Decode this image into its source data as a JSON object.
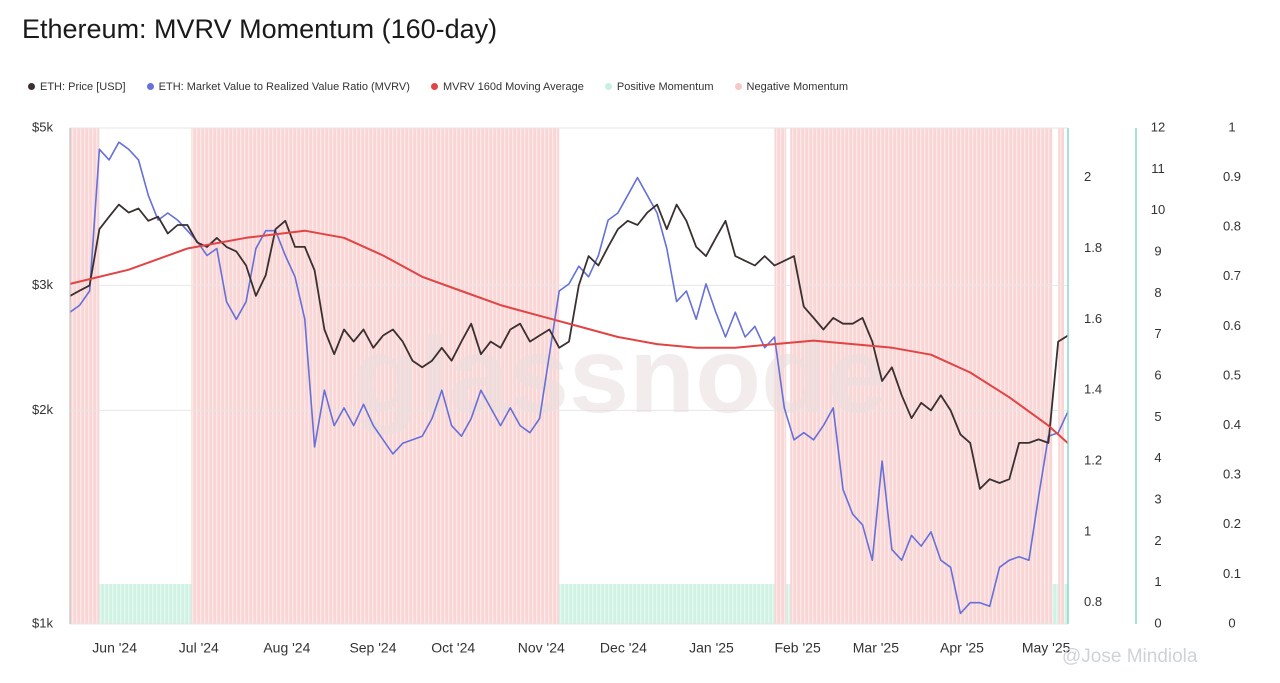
{
  "title": "Ethereum: MVRV Momentum (160-day)",
  "watermark": "@Jose Mindiola",
  "background_logo": "glassnode",
  "chart_data": {
    "type": "line",
    "title": "Ethereum: MVRV Momentum (160-day)",
    "legend": [
      {
        "name": "ETH: Price [USD]",
        "color": "#3a3030"
      },
      {
        "name": "ETH: Market Value to Realized Value Ratio (MVRV)",
        "color": "#6670d8"
      },
      {
        "name": "MVRV 160d Moving Average",
        "color": "#e04444"
      },
      {
        "name": "Positive Momentum",
        "color": "#c8f0de"
      },
      {
        "name": "Negative Momentum",
        "color": "#f7c8c8"
      }
    ],
    "x_range": [
      0,
      51
    ],
    "x_unit": "weeks since 2024-05-10",
    "x_ticks": [
      {
        "label": "Jun '24",
        "x": 3.1
      },
      {
        "label": "Jul '24",
        "x": 7.4
      },
      {
        "label": "Aug '24",
        "x": 11.9
      },
      {
        "label": "Sep '24",
        "x": 16.3
      },
      {
        "label": "Oct '24",
        "x": 20.4
      },
      {
        "label": "Nov '24",
        "x": 24.9
      },
      {
        "label": "Dec '24",
        "x": 29.1
      },
      {
        "label": "Jan '25",
        "x": 33.6
      },
      {
        "label": "Feb '25",
        "x": 38.0
      },
      {
        "label": "Mar '25",
        "x": 42.0
      },
      {
        "label": "Apr '25",
        "x": 46.4
      },
      {
        "label": "May '25",
        "x": 50.7
      }
    ],
    "axes": {
      "price": {
        "label": "",
        "scale": "log",
        "range": [
          1000,
          5000
        ],
        "ticks": [
          {
            "v": 5000,
            "label": "$5k"
          },
          {
            "v": 3000,
            "label": "$3k"
          },
          {
            "v": 2000,
            "label": "$2k"
          },
          {
            "v": 1000,
            "label": "$1k"
          }
        ]
      },
      "mvrv": {
        "range": [
          0.74,
          2.14
        ],
        "ticks": [
          "2",
          "1.8",
          "1.6",
          "1.4",
          "1.2",
          "1",
          "0.8"
        ]
      },
      "axis3": {
        "range": [
          0,
          12
        ],
        "ticks": [
          "12",
          "11",
          "10",
          "9",
          "8",
          "7",
          "6",
          "5",
          "4",
          "3",
          "2",
          "1",
          "0"
        ]
      },
      "axis4": {
        "range": [
          0,
          1
        ],
        "ticks": [
          "1",
          "0.9",
          "0.8",
          "0.7",
          "0.6",
          "0.5",
          "0.4",
          "0.3",
          "0.2",
          "0.1",
          "0"
        ]
      }
    },
    "momentum_bands": [
      {
        "type": "negative",
        "start": 0,
        "end": 1.5
      },
      {
        "type": "positive",
        "start": 1.5,
        "end": 6.2
      },
      {
        "type": "negative",
        "start": 6.2,
        "end": 25.0
      },
      {
        "type": "positive",
        "start": 25.0,
        "end": 36.0
      },
      {
        "type": "negative",
        "start": 36.0,
        "end": 36.6
      },
      {
        "type": "positive",
        "start": 36.6,
        "end": 36.8
      },
      {
        "type": "negative",
        "start": 36.8,
        "end": 50.2
      },
      {
        "type": "positive",
        "start": 50.2,
        "end": 50.5
      },
      {
        "type": "negative",
        "start": 50.5,
        "end": 50.8
      },
      {
        "type": "positive",
        "start": 50.8,
        "end": 51
      }
    ],
    "series": [
      {
        "name": "ETH: Price [USD]",
        "axis": "price",
        "points": [
          [
            0.0,
            2900
          ],
          [
            0.5,
            2950
          ],
          [
            1.0,
            3000
          ],
          [
            1.5,
            3600
          ],
          [
            2.0,
            3750
          ],
          [
            2.5,
            3900
          ],
          [
            3.0,
            3800
          ],
          [
            3.5,
            3850
          ],
          [
            4.0,
            3700
          ],
          [
            4.5,
            3750
          ],
          [
            5.0,
            3550
          ],
          [
            5.5,
            3650
          ],
          [
            6.0,
            3650
          ],
          [
            6.5,
            3450
          ],
          [
            7.0,
            3400
          ],
          [
            7.5,
            3500
          ],
          [
            8.0,
            3400
          ],
          [
            8.5,
            3350
          ],
          [
            9.0,
            3200
          ],
          [
            9.5,
            2900
          ],
          [
            10.0,
            3100
          ],
          [
            10.5,
            3600
          ],
          [
            11.0,
            3700
          ],
          [
            11.5,
            3400
          ],
          [
            12.0,
            3400
          ],
          [
            12.5,
            3150
          ],
          [
            13.0,
            2600
          ],
          [
            13.5,
            2400
          ],
          [
            14.0,
            2600
          ],
          [
            14.5,
            2500
          ],
          [
            15.0,
            2600
          ],
          [
            15.5,
            2450
          ],
          [
            16.0,
            2550
          ],
          [
            16.5,
            2600
          ],
          [
            17.0,
            2500
          ],
          [
            17.5,
            2350
          ],
          [
            18.0,
            2300
          ],
          [
            18.5,
            2350
          ],
          [
            19.0,
            2450
          ],
          [
            19.5,
            2350
          ],
          [
            20.0,
            2500
          ],
          [
            20.5,
            2650
          ],
          [
            21.0,
            2400
          ],
          [
            21.5,
            2500
          ],
          [
            22.0,
            2450
          ],
          [
            22.5,
            2600
          ],
          [
            23.0,
            2650
          ],
          [
            23.5,
            2500
          ],
          [
            24.0,
            2550
          ],
          [
            24.5,
            2600
          ],
          [
            25.0,
            2450
          ],
          [
            25.5,
            2500
          ],
          [
            26.0,
            3000
          ],
          [
            26.5,
            3300
          ],
          [
            27.0,
            3200
          ],
          [
            27.5,
            3400
          ],
          [
            28.0,
            3600
          ],
          [
            28.5,
            3700
          ],
          [
            29.0,
            3650
          ],
          [
            29.5,
            3800
          ],
          [
            30.0,
            3900
          ],
          [
            30.5,
            3600
          ],
          [
            31.0,
            3900
          ],
          [
            31.5,
            3700
          ],
          [
            32.0,
            3400
          ],
          [
            32.5,
            3300
          ],
          [
            33.0,
            3500
          ],
          [
            33.5,
            3700
          ],
          [
            34.0,
            3300
          ],
          [
            34.5,
            3250
          ],
          [
            35.0,
            3200
          ],
          [
            35.5,
            3300
          ],
          [
            36.0,
            3200
          ],
          [
            36.5,
            3250
          ],
          [
            37.0,
            3300
          ],
          [
            37.5,
            2800
          ],
          [
            38.0,
            2700
          ],
          [
            38.5,
            2600
          ],
          [
            39.0,
            2700
          ],
          [
            39.5,
            2650
          ],
          [
            40.0,
            2650
          ],
          [
            40.5,
            2700
          ],
          [
            41.0,
            2500
          ],
          [
            41.5,
            2200
          ],
          [
            42.0,
            2300
          ],
          [
            42.5,
            2100
          ],
          [
            43.0,
            1950
          ],
          [
            43.5,
            2050
          ],
          [
            44.0,
            2000
          ],
          [
            44.5,
            2100
          ],
          [
            45.0,
            2000
          ],
          [
            45.5,
            1850
          ],
          [
            46.0,
            1800
          ],
          [
            46.5,
            1550
          ],
          [
            47.0,
            1600
          ],
          [
            47.5,
            1580
          ],
          [
            48.0,
            1600
          ],
          [
            48.5,
            1800
          ],
          [
            49.0,
            1800
          ],
          [
            49.5,
            1820
          ],
          [
            50.0,
            1800
          ],
          [
            50.5,
            2500
          ],
          [
            51.0,
            2550
          ]
        ]
      },
      {
        "name": "ETH: Market Value to Realized Value Ratio (MVRV)",
        "axis": "mvrv",
        "points": [
          [
            0.0,
            1.62
          ],
          [
            0.5,
            1.64
          ],
          [
            1.0,
            1.68
          ],
          [
            1.5,
            2.08
          ],
          [
            2.0,
            2.05
          ],
          [
            2.5,
            2.1
          ],
          [
            3.0,
            2.08
          ],
          [
            3.5,
            2.05
          ],
          [
            4.0,
            1.95
          ],
          [
            4.5,
            1.88
          ],
          [
            5.0,
            1.9
          ],
          [
            5.5,
            1.88
          ],
          [
            6.0,
            1.85
          ],
          [
            6.5,
            1.82
          ],
          [
            7.0,
            1.78
          ],
          [
            7.5,
            1.8
          ],
          [
            8.0,
            1.65
          ],
          [
            8.5,
            1.6
          ],
          [
            9.0,
            1.65
          ],
          [
            9.5,
            1.8
          ],
          [
            10.0,
            1.85
          ],
          [
            10.5,
            1.85
          ],
          [
            11.0,
            1.78
          ],
          [
            11.5,
            1.72
          ],
          [
            12.0,
            1.6
          ],
          [
            12.5,
            1.24
          ],
          [
            13.0,
            1.4
          ],
          [
            13.5,
            1.3
          ],
          [
            14.0,
            1.35
          ],
          [
            14.5,
            1.3
          ],
          [
            15.0,
            1.36
          ],
          [
            15.5,
            1.3
          ],
          [
            16.0,
            1.26
          ],
          [
            16.5,
            1.22
          ],
          [
            17.0,
            1.25
          ],
          [
            17.5,
            1.26
          ],
          [
            18.0,
            1.27
          ],
          [
            18.5,
            1.32
          ],
          [
            19.0,
            1.4
          ],
          [
            19.5,
            1.3
          ],
          [
            20.0,
            1.27
          ],
          [
            20.5,
            1.32
          ],
          [
            21.0,
            1.4
          ],
          [
            21.5,
            1.35
          ],
          [
            22.0,
            1.3
          ],
          [
            22.5,
            1.35
          ],
          [
            23.0,
            1.3
          ],
          [
            23.5,
            1.28
          ],
          [
            24.0,
            1.32
          ],
          [
            24.5,
            1.5
          ],
          [
            25.0,
            1.68
          ],
          [
            25.5,
            1.7
          ],
          [
            26.0,
            1.75
          ],
          [
            26.5,
            1.72
          ],
          [
            27.0,
            1.78
          ],
          [
            27.5,
            1.88
          ],
          [
            28.0,
            1.9
          ],
          [
            28.5,
            1.95
          ],
          [
            29.0,
            2.0
          ],
          [
            29.5,
            1.95
          ],
          [
            30.0,
            1.9
          ],
          [
            30.5,
            1.8
          ],
          [
            31.0,
            1.65
          ],
          [
            31.5,
            1.68
          ],
          [
            32.0,
            1.6
          ],
          [
            32.5,
            1.7
          ],
          [
            33.0,
            1.62
          ],
          [
            33.5,
            1.55
          ],
          [
            34.0,
            1.62
          ],
          [
            34.5,
            1.55
          ],
          [
            35.0,
            1.58
          ],
          [
            35.5,
            1.52
          ],
          [
            36.0,
            1.55
          ],
          [
            36.5,
            1.35
          ],
          [
            37.0,
            1.26
          ],
          [
            37.5,
            1.28
          ],
          [
            38.0,
            1.26
          ],
          [
            38.5,
            1.3
          ],
          [
            39.0,
            1.35
          ],
          [
            39.5,
            1.12
          ],
          [
            40.0,
            1.05
          ],
          [
            40.5,
            1.02
          ],
          [
            41.0,
            0.92
          ],
          [
            41.5,
            1.2
          ],
          [
            42.0,
            0.95
          ],
          [
            42.5,
            0.92
          ],
          [
            43.0,
            0.99
          ],
          [
            43.5,
            0.96
          ],
          [
            44.0,
            1.0
          ],
          [
            44.5,
            0.92
          ],
          [
            45.0,
            0.9
          ],
          [
            45.5,
            0.77
          ],
          [
            46.0,
            0.8
          ],
          [
            46.5,
            0.8
          ],
          [
            47.0,
            0.79
          ],
          [
            47.5,
            0.9
          ],
          [
            48.0,
            0.92
          ],
          [
            48.5,
            0.93
          ],
          [
            49.0,
            0.92
          ],
          [
            49.5,
            1.1
          ],
          [
            50.0,
            1.27
          ],
          [
            50.5,
            1.28
          ],
          [
            51.0,
            1.34
          ]
        ]
      },
      {
        "name": "MVRV 160d Moving Average",
        "axis": "mvrv",
        "points": [
          [
            0.0,
            1.7
          ],
          [
            3.0,
            1.74
          ],
          [
            6.0,
            1.8
          ],
          [
            9.0,
            1.83
          ],
          [
            12.0,
            1.85
          ],
          [
            14.0,
            1.83
          ],
          [
            16.0,
            1.78
          ],
          [
            18.0,
            1.72
          ],
          [
            20.0,
            1.68
          ],
          [
            22.0,
            1.64
          ],
          [
            24.0,
            1.61
          ],
          [
            26.0,
            1.58
          ],
          [
            28.0,
            1.55
          ],
          [
            30.0,
            1.53
          ],
          [
            32.0,
            1.52
          ],
          [
            34.0,
            1.52
          ],
          [
            36.0,
            1.53
          ],
          [
            38.0,
            1.54
          ],
          [
            40.0,
            1.53
          ],
          [
            42.0,
            1.52
          ],
          [
            44.0,
            1.5
          ],
          [
            46.0,
            1.45
          ],
          [
            48.0,
            1.38
          ],
          [
            50.0,
            1.3
          ],
          [
            51.0,
            1.25
          ]
        ]
      }
    ]
  }
}
